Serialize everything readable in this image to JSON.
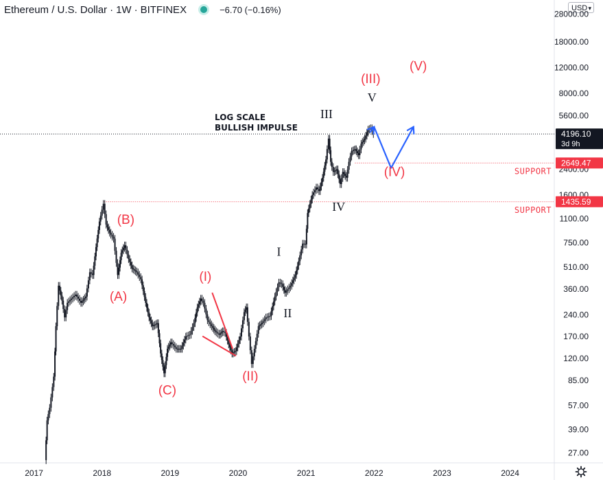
{
  "header": {
    "symbol": "Ethereum / U.S. Dollar",
    "interval": "1W",
    "exchange": "BITFINEX",
    "separator": "·",
    "change": "−6.70 (−0.16%)"
  },
  "currency_selector": {
    "value": "USD"
  },
  "colors": {
    "candle": "#131722",
    "elliott_red": "#f23645",
    "projection_blue": "#2962ff",
    "status_dot": "#26a69a",
    "price_tag": "#131722",
    "support_tag": "#f23645"
  },
  "chart_data": {
    "type": "line",
    "scale": "log",
    "ylim": [
      23,
      35000
    ],
    "x_range": [
      2016.5,
      2024.65
    ],
    "x_ticks": [
      {
        "x": 2017,
        "label": "2017"
      },
      {
        "x": 2018,
        "label": "2018"
      },
      {
        "x": 2019,
        "label": "2019"
      },
      {
        "x": 2020,
        "label": "2020"
      },
      {
        "x": 2021,
        "label": "2021"
      },
      {
        "x": 2022,
        "label": "2022"
      },
      {
        "x": 2023,
        "label": "2023"
      },
      {
        "x": 2024,
        "label": "2024"
      }
    ],
    "y_ticks": [
      {
        "v": 28000,
        "label": "28000.00"
      },
      {
        "v": 18000,
        "label": "18000.00"
      },
      {
        "v": 12000,
        "label": "12000.00"
      },
      {
        "v": 8000,
        "label": "8000.00"
      },
      {
        "v": 5600,
        "label": "5600.00"
      },
      {
        "v": 2400,
        "label": "2400.00"
      },
      {
        "v": 1600,
        "label": "1600.00"
      },
      {
        "v": 1100,
        "label": "1100.00"
      },
      {
        "v": 750,
        "label": "750.00"
      },
      {
        "v": 510,
        "label": "510.00"
      },
      {
        "v": 360,
        "label": "360.00"
      },
      {
        "v": 240,
        "label": "240.00"
      },
      {
        "v": 170,
        "label": "170.00"
      },
      {
        "v": 120,
        "label": "120.00"
      },
      {
        "v": 85,
        "label": "85.00"
      },
      {
        "v": 57,
        "label": "57.00"
      },
      {
        "v": 39,
        "label": "39.00"
      },
      {
        "v": 27,
        "label": "27.00"
      }
    ],
    "price_path": [
      [
        2017.17,
        24
      ],
      [
        2017.2,
        45
      ],
      [
        2017.24,
        55
      ],
      [
        2017.3,
        90
      ],
      [
        2017.33,
        200
      ],
      [
        2017.37,
        380
      ],
      [
        2017.42,
        300
      ],
      [
        2017.46,
        230
      ],
      [
        2017.5,
        290
      ],
      [
        2017.56,
        310
      ],
      [
        2017.62,
        330
      ],
      [
        2017.7,
        290
      ],
      [
        2017.77,
        320
      ],
      [
        2017.83,
        470
      ],
      [
        2017.87,
        450
      ],
      [
        2017.92,
        700
      ],
      [
        2017.97,
        1050
      ],
      [
        2018.03,
        1390
      ],
      [
        2018.07,
        1000
      ],
      [
        2018.12,
        880
      ],
      [
        2018.18,
        800
      ],
      [
        2018.24,
        450
      ],
      [
        2018.29,
        640
      ],
      [
        2018.34,
        720
      ],
      [
        2018.4,
        580
      ],
      [
        2018.45,
        500
      ],
      [
        2018.52,
        470
      ],
      [
        2018.58,
        420
      ],
      [
        2018.65,
        290
      ],
      [
        2018.7,
        230
      ],
      [
        2018.75,
        200
      ],
      [
        2018.82,
        210
      ],
      [
        2018.87,
        130
      ],
      [
        2018.92,
        95
      ],
      [
        2018.97,
        140
      ],
      [
        2019.02,
        155
      ],
      [
        2019.1,
        140
      ],
      [
        2019.17,
        140
      ],
      [
        2019.24,
        170
      ],
      [
        2019.3,
        175
      ],
      [
        2019.36,
        210
      ],
      [
        2019.41,
        270
      ],
      [
        2019.46,
        310
      ],
      [
        2019.5,
        290
      ],
      [
        2019.56,
        220
      ],
      [
        2019.62,
        200
      ],
      [
        2019.67,
        185
      ],
      [
        2019.73,
        175
      ],
      [
        2019.78,
        185
      ],
      [
        2019.82,
        180
      ],
      [
        2019.87,
        150
      ],
      [
        2019.92,
        130
      ],
      [
        2019.97,
        135
      ],
      [
        2020.04,
        170
      ],
      [
        2020.1,
        250
      ],
      [
        2020.13,
        270
      ],
      [
        2020.17,
        170
      ],
      [
        2020.21,
        110
      ],
      [
        2020.25,
        140
      ],
      [
        2020.31,
        200
      ],
      [
        2020.36,
        210
      ],
      [
        2020.42,
        230
      ],
      [
        2020.48,
        235
      ],
      [
        2020.55,
        320
      ],
      [
        2020.61,
        400
      ],
      [
        2020.65,
        390
      ],
      [
        2020.7,
        340
      ],
      [
        2020.78,
        380
      ],
      [
        2020.85,
        450
      ],
      [
        2020.9,
        560
      ],
      [
        2020.96,
        740
      ],
      [
        2021.0,
        730
      ],
      [
        2021.03,
        1200
      ],
      [
        2021.1,
        1600
      ],
      [
        2021.16,
        1800
      ],
      [
        2021.2,
        1700
      ],
      [
        2021.25,
        2100
      ],
      [
        2021.3,
        2800
      ],
      [
        2021.34,
        3900
      ],
      [
        2021.37,
        2700
      ],
      [
        2021.41,
        2300
      ],
      [
        2021.46,
        2400
      ],
      [
        2021.51,
        1900
      ],
      [
        2021.55,
        2300
      ],
      [
        2021.6,
        2100
      ],
      [
        2021.64,
        2700
      ],
      [
        2021.68,
        3200
      ],
      [
        2021.73,
        3300
      ],
      [
        2021.78,
        3000
      ],
      [
        2021.82,
        3600
      ],
      [
        2021.87,
        3900
      ],
      [
        2021.92,
        4500
      ],
      [
        2021.96,
        4600
      ],
      [
        2022.0,
        4196
      ]
    ],
    "current_price": {
      "value": 4196.1,
      "label": "4196.10",
      "countdown": "3d 9h"
    },
    "support_levels": [
      {
        "value": 2649.47,
        "label": "2649.47",
        "x_start": 2021.72,
        "text": "SUPPORT"
      },
      {
        "value": 1435.59,
        "label": "1435.59",
        "x_start": 2018.03,
        "text": "SUPPORT"
      }
    ],
    "projection": [
      [
        2021.94,
        4300
      ],
      [
        2022.0,
        4700
      ],
      [
        2022.25,
        2450
      ],
      [
        2022.58,
        4700
      ]
    ],
    "projection_arrowheads": [
      {
        "from": [
          2021.94,
          4300
        ],
        "to": [
          2022.0,
          4700
        ]
      },
      {
        "from": [
          2022.25,
          2450
        ],
        "to": [
          2022.58,
          4700
        ]
      }
    ],
    "triangle": [
      [
        2019.62,
        340
      ],
      [
        2019.92,
        140
      ],
      [
        2019.73,
        160
      ],
      [
        2019.97,
        125
      ]
    ],
    "labels": [
      {
        "text": "(B)",
        "x": 2018.35,
        "v": 1010,
        "color": "red"
      },
      {
        "text": "(A)",
        "x": 2018.24,
        "v": 300,
        "color": "red"
      },
      {
        "text": "(C)",
        "x": 2018.96,
        "v": 68,
        "color": "red"
      },
      {
        "text": "(I)",
        "x": 2019.52,
        "v": 410,
        "color": "red"
      },
      {
        "text": "(II)",
        "x": 2020.18,
        "v": 85,
        "color": "red"
      },
      {
        "text": "(III)",
        "x": 2021.95,
        "v": 9400,
        "color": "red"
      },
      {
        "text": "(IV)",
        "x": 2022.3,
        "v": 2150,
        "color": "red"
      },
      {
        "text": "(V)",
        "x": 2022.65,
        "v": 11500,
        "color": "red"
      },
      {
        "text": "I",
        "x": 2020.6,
        "v": 610,
        "color": "black"
      },
      {
        "text": "II",
        "x": 2020.73,
        "v": 230,
        "color": "black"
      },
      {
        "text": "III",
        "x": 2021.3,
        "v": 5400,
        "color": "black"
      },
      {
        "text": "IV",
        "x": 2021.48,
        "v": 1240,
        "color": "black"
      },
      {
        "text": "V",
        "x": 2021.97,
        "v": 7000,
        "color": "black"
      }
    ],
    "annotation": {
      "line1": "LOG SCALE",
      "line2": "BULLISH IMPULSE"
    }
  }
}
